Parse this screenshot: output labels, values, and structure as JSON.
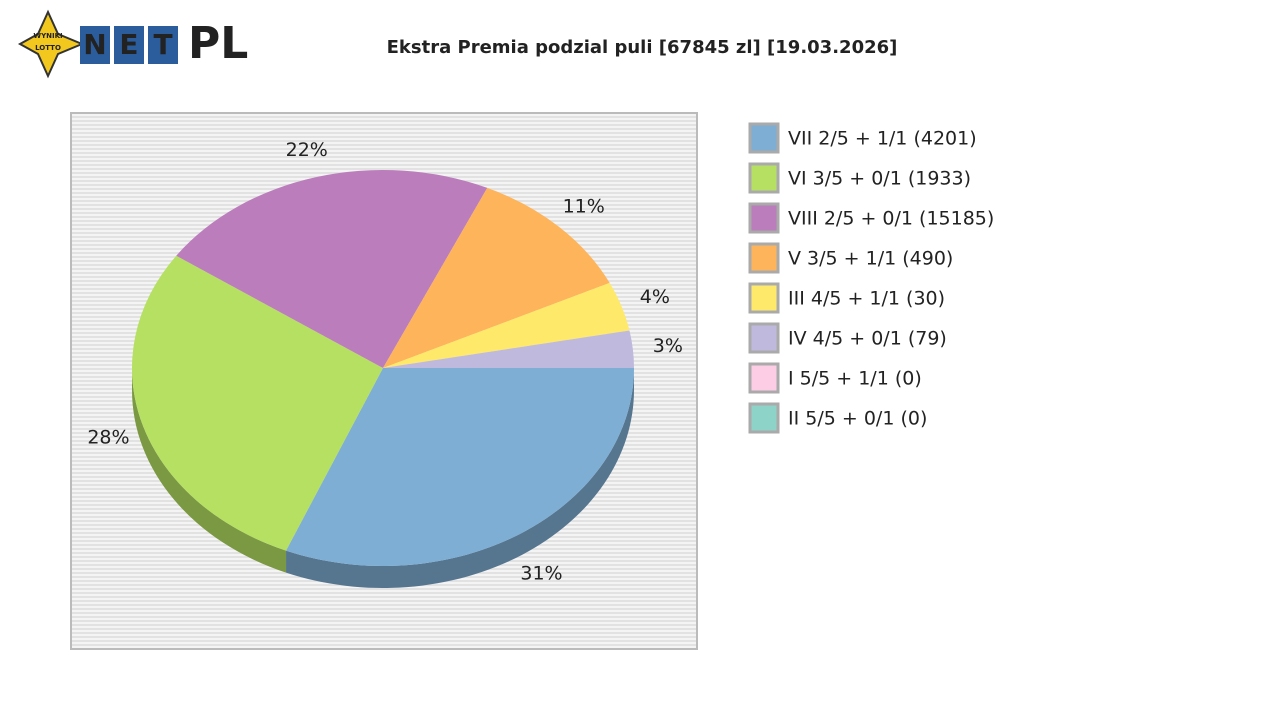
{
  "logo": {
    "badge_top": "WYNIKI",
    "badge_bottom": "LOTTO",
    "net": [
      "N",
      "E",
      "T"
    ],
    "pl": "PL"
  },
  "chart_data": {
    "type": "pie",
    "title": "Ekstra Premia podzial puli [67845 zl] [19.03.2026]",
    "categories": [
      "VII 2/5 + 1/1 (4201)",
      "VI 3/5 + 0/1 (1933)",
      "VIII 2/5 + 0/1 (15185)",
      "V 3/5 + 1/1 (490)",
      "III 4/5 + 1/1 (30)",
      "IV 4/5 + 0/1 (79)",
      "I 5/5 + 1/1 (0)",
      "II 5/5 + 0/1 (0)"
    ],
    "values": [
      31,
      28,
      22,
      11,
      4,
      3,
      0,
      0
    ],
    "value_labels": [
      "31%",
      "28%",
      "22%",
      "11%",
      "4%",
      "3%",
      null,
      null
    ],
    "colors": [
      "#7eaed4",
      "#b5e061",
      "#bb7dbb",
      "#feb45a",
      "#fee96a",
      "#bfb9dd",
      "#fccde5",
      "#8dd3c7"
    ],
    "legend": "right"
  }
}
